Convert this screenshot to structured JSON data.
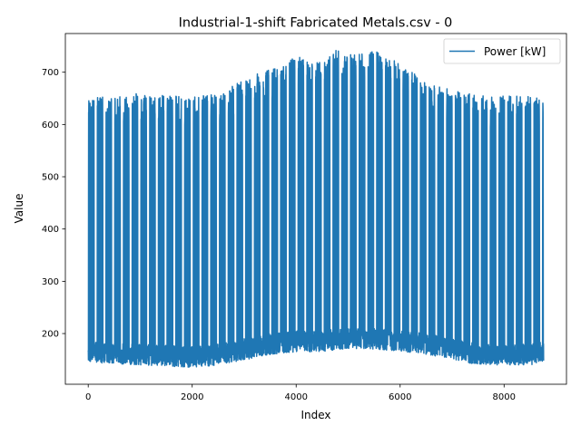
{
  "chart_data": {
    "type": "line",
    "title": "Industrial-1-shift Fabricated Metals.csv - 0",
    "xlabel": "Index",
    "ylabel": "Value",
    "xlim": [
      -440,
      9200
    ],
    "ylim": [
      103,
      774
    ],
    "xticks": [
      0,
      2000,
      4000,
      6000,
      8000
    ],
    "yticks": [
      200,
      300,
      400,
      500,
      600,
      700
    ],
    "grid": false,
    "legend_position": "top-right",
    "series": [
      {
        "name": "Power [kW]",
        "color": "#1f77b4",
        "x_start": 0,
        "x_end": 8760,
        "envelope": {
          "x": [
            0,
            1000,
            2000,
            2500,
            3000,
            3500,
            4000,
            4500,
            4800,
            5000,
            5500,
            6000,
            6500,
            7000,
            7500,
            8000,
            8500,
            8760
          ],
          "peak": [
            650,
            660,
            652,
            660,
            690,
            705,
            733,
            725,
            745,
            735,
            745,
            715,
            680,
            665,
            655,
            655,
            655,
            648
          ],
          "trough": [
            145,
            140,
            135,
            140,
            150,
            160,
            165,
            165,
            170,
            170,
            170,
            165,
            160,
            150,
            140,
            140,
            140,
            145
          ]
        }
      }
    ]
  }
}
